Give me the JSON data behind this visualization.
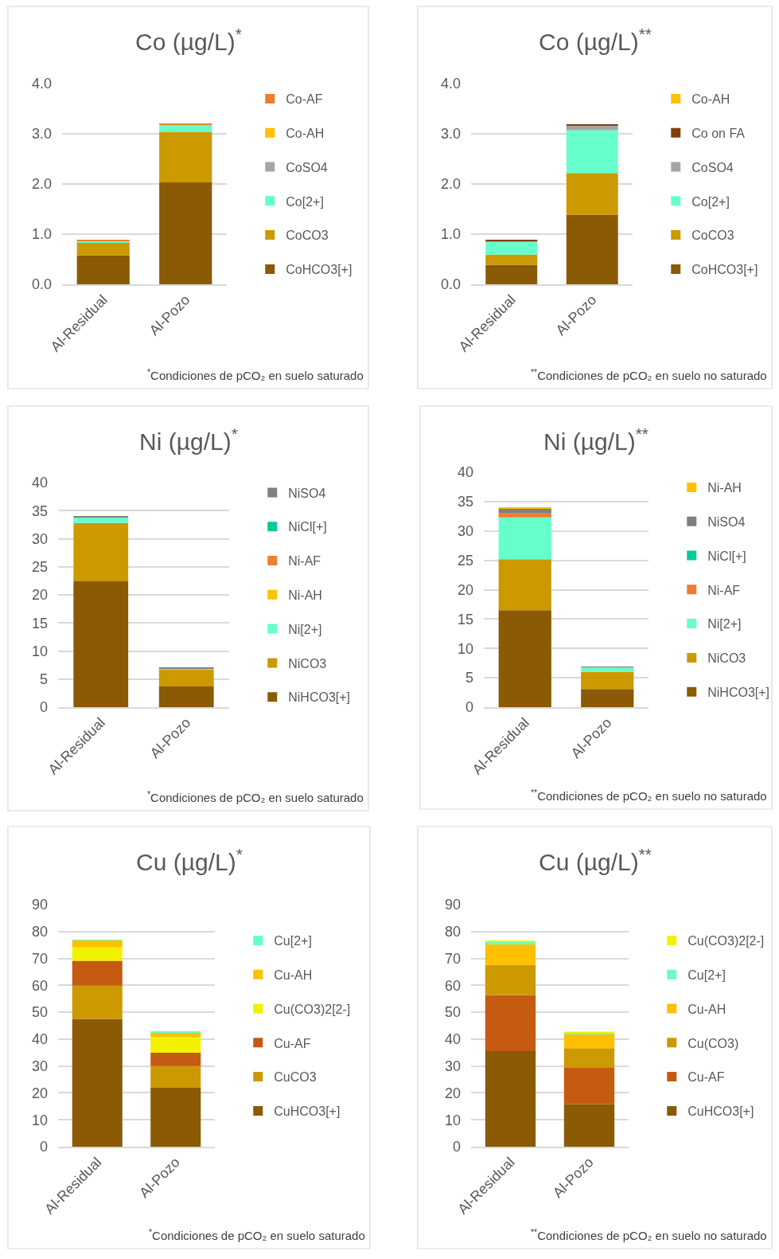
{
  "chart_data": [
    {
      "type": "bar",
      "stacked": true,
      "title": "Co (µg/L)$^{*}$",
      "categories": [
        "Al-Residual",
        "Al-Pozo"
      ],
      "ylim": [
        0,
        4
      ],
      "yticks": [
        {
          "value": 0,
          "label": "0.0"
        },
        {
          "value": 1,
          "label": "1.0"
        },
        {
          "value": 2,
          "label": "2.0"
        },
        {
          "value": 3,
          "label": "3.0"
        },
        {
          "value": 4,
          "label": "4.0"
        }
      ],
      "grid": "y",
      "legend": "right",
      "annotations": [
        "$^{*}$Condiciones de pCO₂ en suelo saturado"
      ],
      "series": [
        {
          "name": "CoHCO3[+]",
          "color": "#8a5a05",
          "values": [
            0.58,
            2.03
          ]
        },
        {
          "name": "CoCO3",
          "color": "#cc9900",
          "values": [
            0.26,
            1.01
          ]
        },
        {
          "name": "Co[2+]",
          "color": "#66ffcc",
          "values": [
            0.03,
            0.14
          ]
        },
        {
          "name": "CoSO4",
          "color": "#a5a5a5",
          "values": [
            0.0,
            0.0
          ]
        },
        {
          "name": "Co-AH",
          "color": "#ffc000",
          "values": [
            0.0,
            0.0
          ]
        },
        {
          "name": "Co-AF",
          "color": "#ed7d31",
          "values": [
            0.01,
            0.02
          ]
        }
      ]
    },
    {
      "type": "bar",
      "stacked": true,
      "title": "Co (µg/L)$^{**}$",
      "categories": [
        "Al-Residual",
        "Al-Pozo"
      ],
      "ylim": [
        0,
        4
      ],
      "yticks": [
        {
          "value": 0,
          "label": "0.0"
        },
        {
          "value": 1,
          "label": "1.0"
        },
        {
          "value": 2,
          "label": "2.0"
        },
        {
          "value": 3,
          "label": "3.0"
        },
        {
          "value": 4,
          "label": "4.0"
        }
      ],
      "grid": "y",
      "legend": "right",
      "annotations": [
        "$^{**}$Condiciones de pCO₂ en suelo no saturado"
      ],
      "series": [
        {
          "name": "CoHCO3[+]",
          "color": "#8a5a05",
          "values": [
            0.39,
            1.39
          ]
        },
        {
          "name": "CoCO3",
          "color": "#cc9900",
          "values": [
            0.2,
            0.83
          ]
        },
        {
          "name": "Co[2+]",
          "color": "#66ffcc",
          "values": [
            0.26,
            0.85
          ]
        },
        {
          "name": "CoSO4",
          "color": "#a5a5a5",
          "values": [
            0.02,
            0.1
          ]
        },
        {
          "name": "Co on FA",
          "color": "#843c0c",
          "values": [
            0.01,
            0.02
          ]
        },
        {
          "name": "Co-AH",
          "color": "#ffc000",
          "values": [
            0.0,
            0.0
          ]
        }
      ]
    },
    {
      "type": "bar",
      "stacked": true,
      "title": "Ni (µg/L)$^{*}$",
      "categories": [
        "Al-Residual",
        "Al-Pozo"
      ],
      "ylim": [
        0,
        40
      ],
      "yticks": [
        0,
        5,
        10,
        15,
        20,
        25,
        30,
        35,
        40
      ],
      "grid": "y",
      "legend": "right",
      "annotations": [
        "$^{*}$Condiciones de pCO₂ en suelo saturado"
      ],
      "series": [
        {
          "name": "NiHCO3[+]",
          "color": "#8a5a05",
          "values": [
            22.4,
            3.7
          ]
        },
        {
          "name": "NiCO3",
          "color": "#cc9900",
          "values": [
            10.4,
            3.0
          ]
        },
        {
          "name": "Ni[2+]",
          "color": "#66ffcc",
          "values": [
            1.0,
            0.2
          ]
        },
        {
          "name": "Ni-AH",
          "color": "#ffc000",
          "values": [
            0.0,
            0.0
          ]
        },
        {
          "name": "Ni-AF",
          "color": "#ed7d31",
          "values": [
            0.0,
            0.0
          ]
        },
        {
          "name": "NiCl[+]",
          "color": "#00cc99",
          "values": [
            0.0,
            0.0
          ]
        },
        {
          "name": "NiSO4",
          "color": "#7f7f7f",
          "values": [
            0.2,
            0.1
          ]
        }
      ]
    },
    {
      "type": "bar",
      "stacked": true,
      "title": "Ni (µg/L)$^{**}$",
      "categories": [
        "Al-Residual",
        "Al-Pozo"
      ],
      "ylim": [
        0,
        40
      ],
      "yticks": [
        0,
        5,
        10,
        15,
        20,
        25,
        30,
        35,
        40
      ],
      "grid": "y",
      "legend": "right",
      "annotations": [
        "$^{**}$Condiciones de pCO₂ en suelo no saturado"
      ],
      "series": [
        {
          "name": "NiHCO3[+]",
          "color": "#8a5a05",
          "values": [
            16.5,
            3.1
          ]
        },
        {
          "name": "NiCO3",
          "color": "#cc9900",
          "values": [
            8.7,
            2.9
          ]
        },
        {
          "name": "Ni[2+]",
          "color": "#66ffcc",
          "values": [
            7.1,
            0.8
          ]
        },
        {
          "name": "Ni-AF",
          "color": "#ed7d31",
          "values": [
            0.7,
            0.0
          ]
        },
        {
          "name": "NiCl[+]",
          "color": "#00cc99",
          "values": [
            0.0,
            0.0
          ]
        },
        {
          "name": "NiSO4",
          "color": "#7f7f7f",
          "values": [
            0.8,
            0.1
          ]
        },
        {
          "name": "Ni-AH",
          "color": "#ffc000",
          "values": [
            0.1,
            0.0
          ]
        }
      ]
    },
    {
      "type": "bar",
      "stacked": true,
      "title": "Cu (µg/L)$^{*}$",
      "categories": [
        "Al-Residual",
        "Al-Pozo"
      ],
      "ylim": [
        0,
        90
      ],
      "yticks": [
        0,
        10,
        20,
        30,
        40,
        50,
        60,
        70,
        80,
        90
      ],
      "grid": "y",
      "legend": "right",
      "annotations": [
        "$^{*}$Condiciones de pCO₂ en suelo saturado"
      ],
      "series": [
        {
          "name": "CuHCO3[+]",
          "color": "#8a5a05",
          "values": [
            47.5,
            21.9
          ]
        },
        {
          "name": "CuCO3",
          "color": "#cc9900",
          "values": [
            12.4,
            8.1
          ]
        },
        {
          "name": "Cu-AF",
          "color": "#c55a11",
          "values": [
            9.2,
            4.9
          ]
        },
        {
          "name": "Cu(CO3)2[2-]",
          "color": "#f2f200",
          "values": [
            5.0,
            5.9
          ]
        },
        {
          "name": "Cu-AH",
          "color": "#ffc000",
          "values": [
            2.6,
            1.8
          ]
        },
        {
          "name": "Cu[2+]",
          "color": "#66ffcc",
          "values": [
            0.2,
            0.1
          ]
        }
      ]
    },
    {
      "type": "bar",
      "stacked": true,
      "title": "Cu (µg/L)$^{**}$",
      "categories": [
        "Al-Residual",
        "Al-Pozo"
      ],
      "ylim": [
        0,
        90
      ],
      "yticks": [
        0,
        10,
        20,
        30,
        40,
        50,
        60,
        70,
        80,
        90
      ],
      "grid": "y",
      "legend": "right",
      "annotations": [
        "$^{**}$Condiciones de pCO₂ en suelo no saturado"
      ],
      "series": [
        {
          "name": "CuHCO3[+]",
          "color": "#8a5a05",
          "values": [
            35.5,
            15.8
          ]
        },
        {
          "name": "Cu-AF",
          "color": "#c55a11",
          "values": [
            20.9,
            13.5
          ]
        },
        {
          "name": "Cu(CO3)",
          "color": "#cc9900",
          "values": [
            11.2,
            7.3
          ]
        },
        {
          "name": "Cu-AH",
          "color": "#ffc000",
          "values": [
            7.6,
            5.3
          ]
        },
        {
          "name": "Cu[2+]",
          "color": "#66ffcc",
          "values": [
            1.0,
            0.3
          ]
        },
        {
          "name": "Cu(CO3)2[2-]",
          "color": "#f2f200",
          "values": [
            0.4,
            0.6
          ]
        }
      ]
    }
  ]
}
